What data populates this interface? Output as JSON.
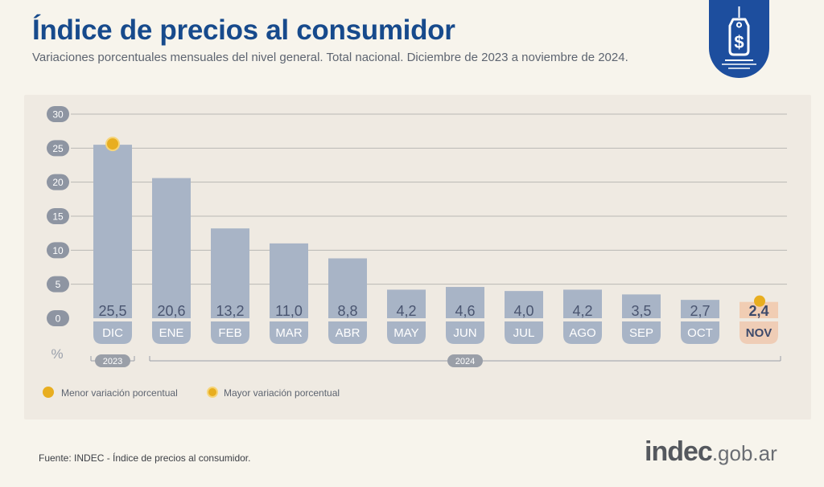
{
  "header": {
    "title": "Índice de precios al consumidor",
    "subtitle": "Variaciones porcentuales mensuales del nivel general. Total nacional. Diciembre de 2023 a noviembre de 2024."
  },
  "badge": {
    "icon": "price-tag-dollar-icon",
    "color": "#1d4e9e"
  },
  "chart_data": {
    "type": "bar",
    "categories": [
      "DIC",
      "ENE",
      "FEB",
      "MAR",
      "ABR",
      "MAY",
      "JUN",
      "JUL",
      "AGO",
      "SEP",
      "OCT",
      "NOV"
    ],
    "values": [
      25.5,
      20.6,
      13.2,
      11.0,
      8.8,
      4.2,
      4.6,
      4.0,
      4.2,
      3.5,
      2.7,
      2.4
    ],
    "value_labels": [
      "25,5",
      "20,6",
      "13,2",
      "11,0",
      "8,8",
      "4,2",
      "4,6",
      "4,0",
      "4,2",
      "3,5",
      "2,7",
      "2,4"
    ],
    "ylim": [
      0,
      30
    ],
    "yticks": [
      0,
      5,
      10,
      15,
      20,
      25,
      30
    ],
    "ylabel": "%",
    "grid": true,
    "year_groups": [
      {
        "label": "2023",
        "from": 0,
        "to": 0
      },
      {
        "label": "2024",
        "from": 1,
        "to": 11
      }
    ],
    "highlight_max_index": 0,
    "highlight_min_index": 11,
    "colors": {
      "bar": "#a8b4c6",
      "bar_highlight": "#f1cdb3",
      "marker": "#e8ae20",
      "tick_pill": "#8e95a2",
      "category_pill": "#a8b4c6",
      "category_pill_highlight": "#efcdb6",
      "highlight_text": "#3d4a6b",
      "value_text": "#4a5570"
    }
  },
  "legend": {
    "min_label": "Menor variación porcentual",
    "max_label": "Mayor variación porcentual"
  },
  "footer": {
    "source": "Fuente: INDEC - Índice de precios al consumidor.",
    "logo_main": "indec",
    "logo_suffix": ".gob.ar"
  }
}
